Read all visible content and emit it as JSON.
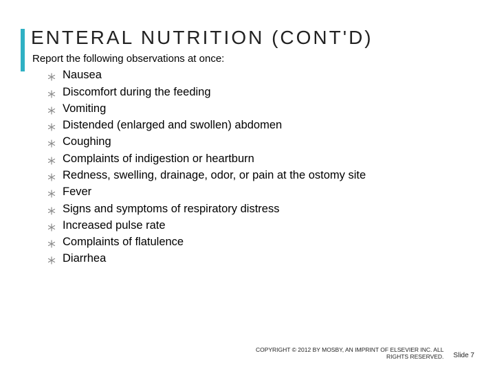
{
  "title": "ENTERAL NUTRITION (CONT'D)",
  "subtitle": "Report the following observations at once:",
  "accent_color": "#2fb1c4",
  "bullet_color": "#8a8a8a",
  "text_color": "#000000",
  "title_color": "#222222",
  "title_fontsize": 28,
  "title_letter_spacing": 3,
  "body_fontsize": 16.5,
  "items": [
    "Nausea",
    "Discomfort during the feeding",
    "Vomiting",
    "Distended (enlarged and swollen) abdomen",
    "Coughing",
    "Complaints of indigestion or heartburn",
    "Redness, swelling, drainage, odor, or pain at the ostomy site",
    "Fever",
    "Signs and symptoms of respiratory distress",
    "Increased pulse rate",
    "Complaints of flatulence",
    "Diarrhea"
  ],
  "copyright_line1": "COPYRIGHT © 2012 BY MOSBY, AN IMPRINT OF ELSEVIER INC. ALL",
  "copyright_line2": "RIGHTS RESERVED.",
  "slide_label": "Slide 7",
  "background_color": "#ffffff"
}
